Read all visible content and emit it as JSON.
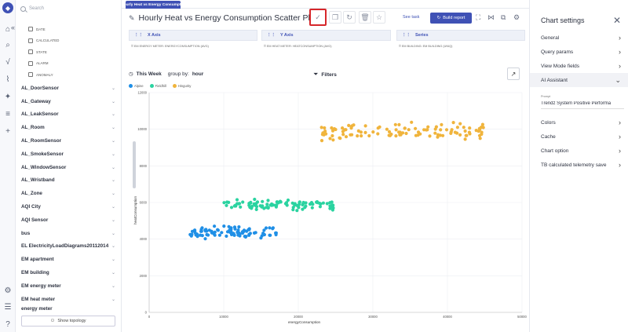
{
  "sidebar": {
    "search_placeholder": "Search",
    "sub_items": [
      "DATE",
      "CALCULATED",
      "STATE",
      "ALARM",
      "ANOMALY"
    ],
    "groups": [
      "AL_DoorSensor",
      "AL_Gateway",
      "AL_LeakSensor",
      "AL_Room",
      "AL_RoomSensor",
      "AL_SmokeSensor",
      "AL_WindowSensor",
      "AL_Wristband",
      "AL_Zone",
      "AQI City",
      "AQI Sensor",
      "bus",
      "EL ElectricityLoadDiagrams20112014",
      "EM apartment",
      "EM building",
      "EM energy meter",
      "EM heat meter",
      "energy meter"
    ],
    "show_topology": "Show topology"
  },
  "main": {
    "tab_label": "Hourly Heat vs Energy Consumpti...",
    "title": "Hourly Heat vs Energy Consumption Scatter Plot",
    "see_task": "See task",
    "build_report": "Build report",
    "x_axis": {
      "label": "X Axis",
      "value": "⠿ EM ENERGY METER: ENERGYCONSUMPTION (AVG)"
    },
    "y_axis": {
      "label": "Y Axis",
      "value": "⠿ EM HEAT METER: HEATCONSUMPTION (AVG)"
    },
    "series": {
      "label": "Series",
      "value": "EM BUILDING: EM BUILDING (UNIQ)"
    },
    "period": "This Week",
    "group_by_label": "group by:",
    "group_by_value": "hour",
    "filters": "Filters"
  },
  "chart_data": {
    "type": "scatter",
    "xlabel": "energyConsumption",
    "ylabel": "heatConsumption",
    "xlim": [
      0,
      50000
    ],
    "ylim": [
      0,
      12000
    ],
    "xticks": [
      "0",
      "10000",
      "20000",
      "30000",
      "40000",
      "50000"
    ],
    "yticks": [
      "0",
      "2000",
      "4000",
      "6000",
      "8000",
      "10000",
      "12000"
    ],
    "series": [
      {
        "name": "Alpine",
        "color": "#1f8fe6",
        "x_center": 11500,
        "y_center": 4400,
        "x_spread": 6000,
        "y_spread": 300
      },
      {
        "name": "Fieldhill",
        "color": "#2ad3a0",
        "x_center": 17500,
        "y_center": 5900,
        "x_spread": 7500,
        "y_spread": 280
      },
      {
        "name": "Hingurity",
        "color": "#f0b43c",
        "x_center": 34000,
        "y_center": 9900,
        "x_spread": 11000,
        "y_spread": 450
      }
    ]
  },
  "panel": {
    "title": "Chart settings",
    "items": [
      "General",
      "Query params",
      "View Mode fields",
      "AI Assistant",
      "Colors",
      "Cache",
      "Chart option",
      "TB calculated telemetry save"
    ],
    "prompt_label": "Prompt",
    "prompt_value": "Trendz System Positive Performa"
  }
}
